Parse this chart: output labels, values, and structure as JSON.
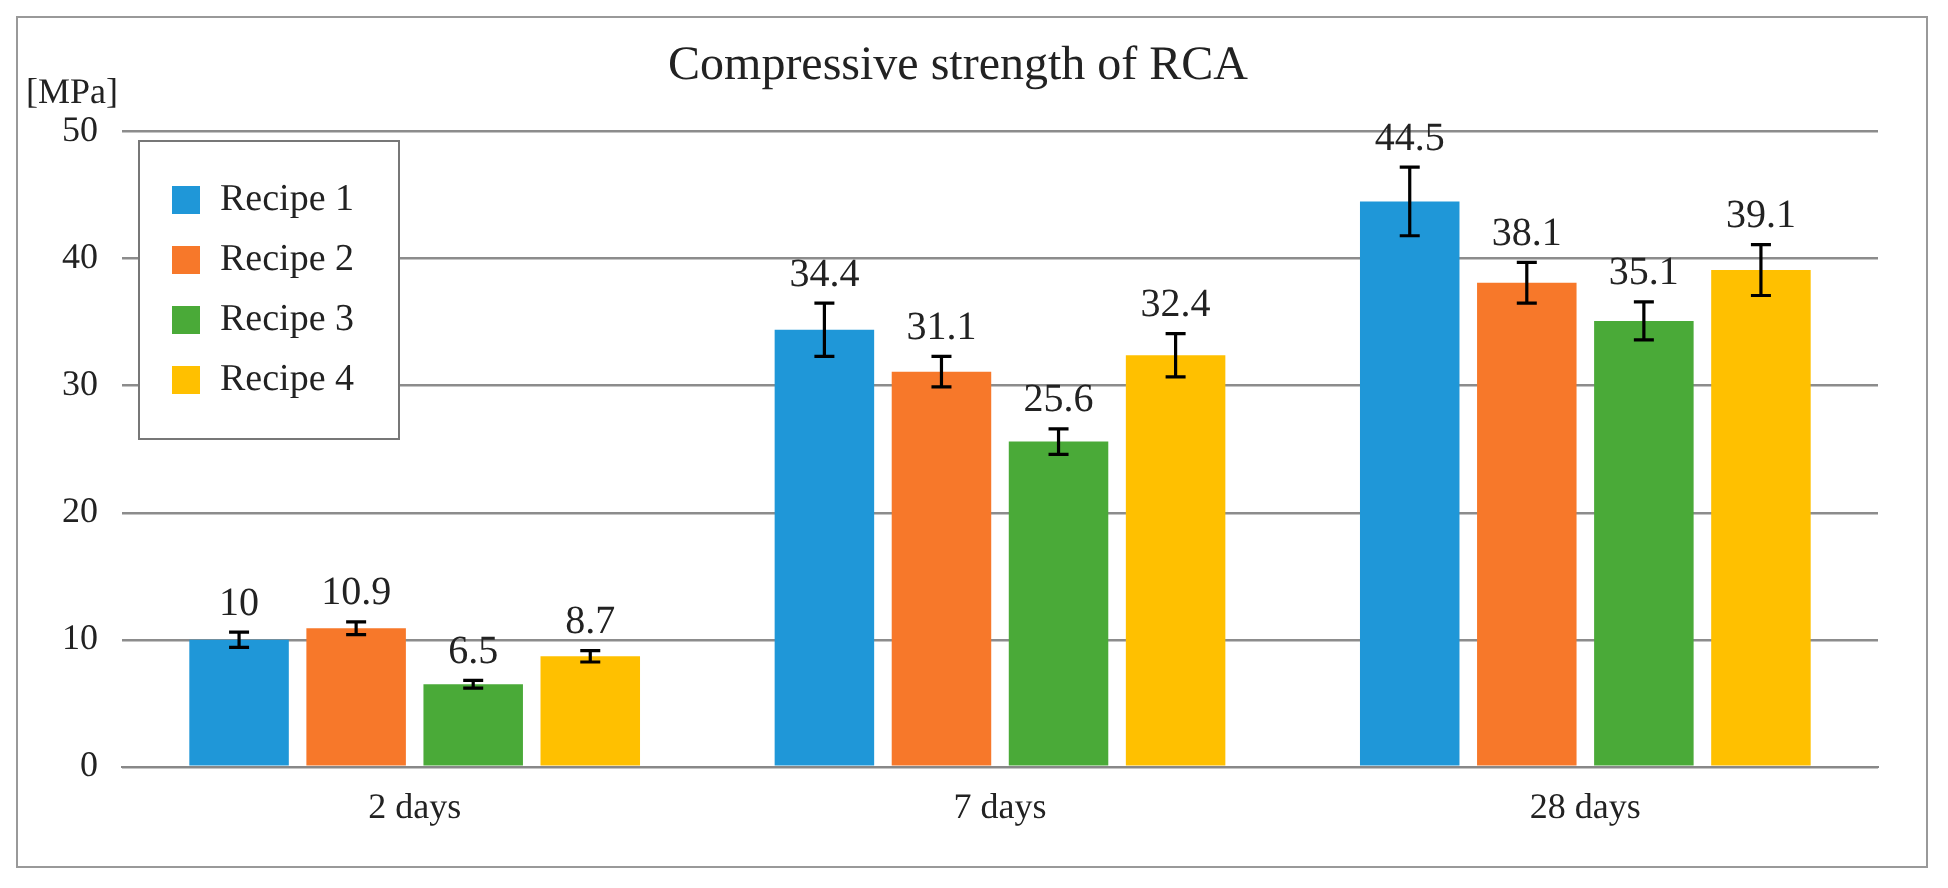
{
  "chart_data": {
    "type": "bar",
    "title": "Compressive strength of RCA",
    "ylabel": "[MPa]",
    "categories": [
      "2 days",
      "7 days",
      "28 days"
    ],
    "series": [
      {
        "name": "Recipe 1",
        "color": "#1f97d8",
        "values": [
          10,
          34.4,
          44.5
        ],
        "errors": [
          0.6,
          2.1,
          2.7
        ]
      },
      {
        "name": "Recipe 2",
        "color": "#f7782a",
        "values": [
          10.9,
          31.1,
          38.1
        ],
        "errors": [
          0.5,
          1.2,
          1.6
        ]
      },
      {
        "name": "Recipe 3",
        "color": "#4aaa38",
        "values": [
          6.5,
          25.6,
          35.1
        ],
        "errors": [
          0.3,
          1.0,
          1.5
        ]
      },
      {
        "name": "Recipe 4",
        "color": "#ffc000",
        "values": [
          8.7,
          32.4,
          39.1
        ],
        "errors": [
          0.45,
          1.7,
          2.0
        ]
      }
    ],
    "ylim": [
      0,
      50
    ],
    "yticks": [
      0,
      10,
      20,
      30,
      40,
      50
    ],
    "grid": "y",
    "legend": "top left",
    "data_labels": true
  }
}
